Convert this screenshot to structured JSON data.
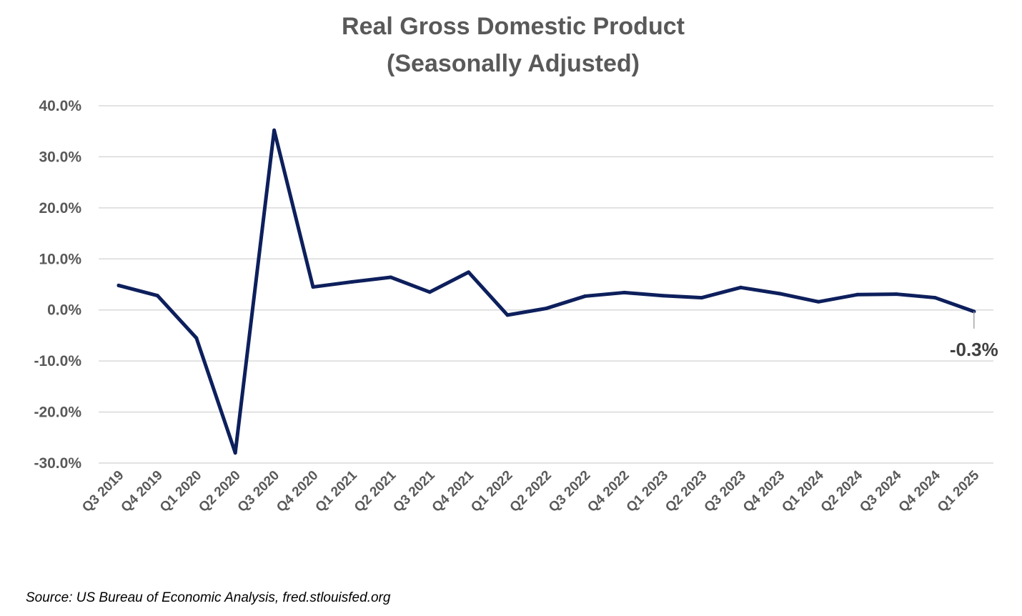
{
  "chart_data": {
    "type": "line",
    "title": "Real Gross Domestic Product",
    "subtitle": "(Seasonally Adjusted)",
    "xlabel": "",
    "ylabel": "",
    "categories": [
      "Q3 2019",
      "Q4 2019",
      "Q1 2020",
      "Q2 2020",
      "Q3 2020",
      "Q4 2020",
      "Q1 2021",
      "Q2 2021",
      "Q3 2021",
      "Q4 2021",
      "Q1 2022",
      "Q2 2022",
      "Q3 2022",
      "Q4 2022",
      "Q1 2023",
      "Q2 2023",
      "Q3 2023",
      "Q4 2023",
      "Q1 2024",
      "Q2 2024",
      "Q3 2024",
      "Q4 2024",
      "Q1 2025"
    ],
    "series": [
      {
        "name": "",
        "color": "#0d1f5c",
        "values": [
          4.8,
          2.8,
          -5.5,
          -28.0,
          35.2,
          4.5,
          5.5,
          6.4,
          3.5,
          7.4,
          -1.0,
          0.3,
          2.7,
          3.4,
          2.8,
          2.4,
          4.4,
          3.2,
          1.6,
          3.0,
          3.1,
          2.4,
          -0.3
        ]
      }
    ],
    "ylim": [
      -30,
      40
    ],
    "yticks": [
      40,
      30,
      20,
      10,
      0,
      -10,
      -20,
      -30
    ],
    "ytick_labels": [
      "40.0%",
      "30.0%",
      "20.0%",
      "10.0%",
      "0.0%",
      "-10.0%",
      "-20.0%",
      "-30.0%"
    ],
    "grid": true,
    "legend": "none",
    "annotation": {
      "category": "Q1 2025",
      "label": "-0.3%"
    }
  },
  "source": "Source: US Bureau of Economic Analysis, fred.stlouisfed.org"
}
